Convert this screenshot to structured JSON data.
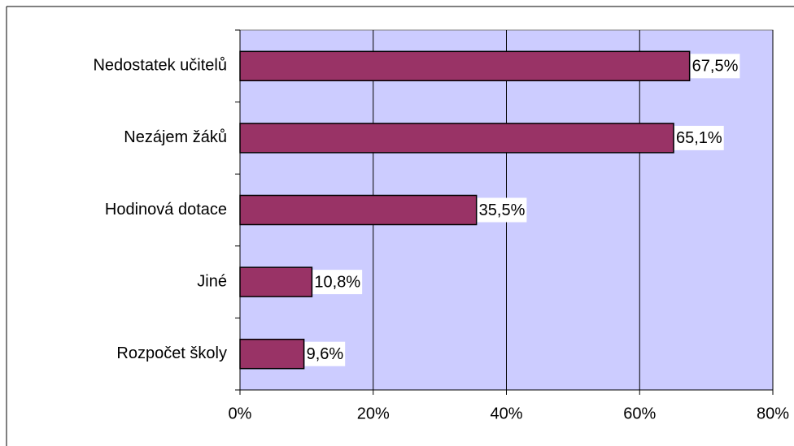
{
  "chart_data": {
    "type": "hbar",
    "categories": [
      "Nedostatek učitelů",
      "Nezájem žáků",
      "Hodinová dotace",
      "Jiné",
      "Rozpočet školy"
    ],
    "values": [
      67.5,
      65.1,
      35.5,
      10.8,
      9.6
    ],
    "value_labels": [
      "67,5%",
      "65,1%",
      "35,5%",
      "10,8%",
      "9,6%"
    ],
    "color": "#993366",
    "plot_background": "#ccccff",
    "xlim": [
      0,
      80
    ],
    "xticks": [
      {
        "value": 0,
        "label": "0%"
      },
      {
        "value": 20,
        "label": "20%"
      },
      {
        "value": 40,
        "label": "40%"
      },
      {
        "value": 60,
        "label": "60%"
      },
      {
        "value": 80,
        "label": "80%"
      }
    ],
    "grid": true
  }
}
